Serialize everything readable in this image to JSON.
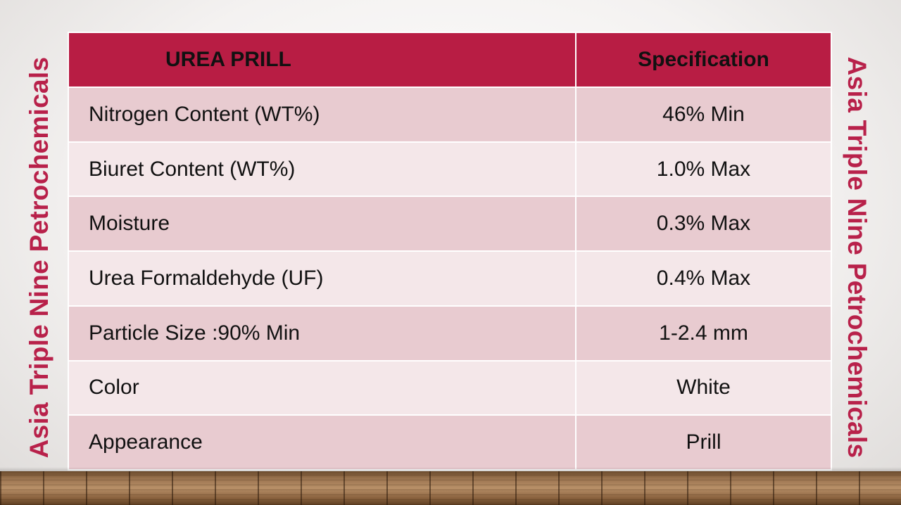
{
  "side_label": "Asia Triple Nine Petrochemicals",
  "table": {
    "header": {
      "product": "UREA PRILL",
      "spec": "Specification"
    },
    "rows": [
      {
        "property": "Nitrogen Content (WT%)",
        "value": "46% Min"
      },
      {
        "property": "Biuret Content (WT%)",
        "value": "1.0% Max"
      },
      {
        "property": "Moisture",
        "value": "0.3% Max"
      },
      {
        "property": "Urea Formaldehyde (UF)",
        "value": "0.4% Max"
      },
      {
        "property": "Particle Size :90% Min",
        "value": "1-2.4 mm"
      },
      {
        "property": "Color",
        "value": "White"
      },
      {
        "property": "Appearance",
        "value": "Prill"
      }
    ]
  },
  "colors": {
    "accent": "#b81d44",
    "side_text": "#b8214a",
    "row_dark": "#e8cbd0",
    "row_light": "#f4e7e9"
  }
}
